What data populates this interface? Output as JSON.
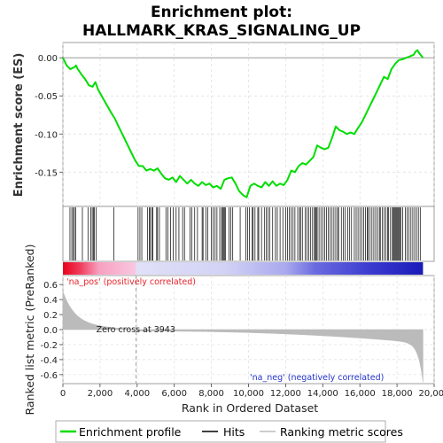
{
  "chart_data": {
    "type": "line",
    "title_line1": "Enrichment plot:",
    "title_line2": "HALLMARK_KRAS_SIGNALING_UP",
    "es_ylabel": "Enrichment score (ES)",
    "rank_ylabel": "Ranked list metric (PreRanked)",
    "xlabel": "Rank in Ordered Dataset",
    "x_ticks": [
      0,
      2000,
      4000,
      6000,
      8000,
      10000,
      12000,
      14000,
      16000,
      18000,
      20000
    ],
    "x_tick_labels": [
      "0",
      "2,000",
      "4,000",
      "6,000",
      "8,000",
      "10,000",
      "12,000",
      "14,000",
      "16,000",
      "18,000",
      "20,000"
    ],
    "xlim": [
      0,
      20000
    ],
    "es_yticks": [
      0.0,
      -0.05,
      -0.1,
      -0.15
    ],
    "es_ytick_labels": [
      "0.00",
      "-0.05",
      "-0.10",
      "-0.15"
    ],
    "es_ylim": [
      -0.195,
      0.02
    ],
    "rank_yticks": [
      0.6,
      0.4,
      0.2,
      0.0,
      -0.2,
      -0.4,
      -0.6
    ],
    "rank_ytick_labels": [
      "0.6",
      "0.4",
      "0.2",
      "0.0",
      "-0.2",
      "-0.4",
      "-0.6"
    ],
    "rank_ylim": [
      -0.72,
      0.72
    ],
    "n_genes": 19400,
    "zero_cross": 3943,
    "zero_cross_label": "Zero cross at 3943",
    "pos_label": "'na_pos' (positively correlated)",
    "neg_label": "'na_neg' (negatively correlated)",
    "colors": {
      "es_line": "#00dd00",
      "hits": "#000000",
      "metric_fill": "#bbbbbb",
      "pos_text": "#e8232a",
      "neg_text": "#2233cc",
      "grid": "#dddddd"
    },
    "series": [
      {
        "name": "Enrichment profile",
        "x": [
          0,
          200,
          400,
          550,
          650,
          700,
          800,
          1000,
          1200,
          1400,
          1600,
          1750,
          1900,
          2200,
          2600,
          2800,
          3000,
          3300,
          3600,
          3900,
          4100,
          4300,
          4500,
          4700,
          4900,
          5100,
          5300,
          5500,
          5700,
          5900,
          6100,
          6300,
          6500,
          6700,
          6900,
          7100,
          7300,
          7500,
          7700,
          7900,
          8100,
          8300,
          8500,
          8700,
          8900,
          9100,
          9300,
          9500,
          9700,
          9900,
          10100,
          10300,
          10500,
          10700,
          10900,
          11100,
          11300,
          11500,
          11700,
          11900,
          12100,
          12300,
          12500,
          12700,
          12900,
          13100,
          13300,
          13500,
          13700,
          13900,
          14100,
          14300,
          14500,
          14700,
          14900,
          15100,
          15300,
          15500,
          15700,
          15900,
          16100,
          16300,
          16500,
          16700,
          16900,
          17100,
          17300,
          17500,
          17700,
          17900,
          18100,
          18300,
          18500,
          18700,
          18900,
          19000,
          19100,
          19200,
          19300,
          19400
        ],
        "y": [
          0.0,
          -0.01,
          -0.015,
          -0.013,
          -0.012,
          -0.01,
          -0.015,
          -0.022,
          -0.028,
          -0.036,
          -0.038,
          -0.032,
          -0.042,
          -0.055,
          -0.072,
          -0.08,
          -0.09,
          -0.105,
          -0.12,
          -0.135,
          -0.142,
          -0.142,
          -0.148,
          -0.146,
          -0.148,
          -0.145,
          -0.152,
          -0.158,
          -0.16,
          -0.157,
          -0.163,
          -0.155,
          -0.16,
          -0.165,
          -0.16,
          -0.165,
          -0.168,
          -0.163,
          -0.167,
          -0.165,
          -0.17,
          -0.168,
          -0.172,
          -0.16,
          -0.158,
          -0.157,
          -0.165,
          -0.175,
          -0.18,
          -0.183,
          -0.168,
          -0.165,
          -0.168,
          -0.17,
          -0.163,
          -0.168,
          -0.162,
          -0.168,
          -0.165,
          -0.167,
          -0.16,
          -0.148,
          -0.15,
          -0.142,
          -0.138,
          -0.14,
          -0.135,
          -0.13,
          -0.115,
          -0.118,
          -0.12,
          -0.118,
          -0.105,
          -0.09,
          -0.095,
          -0.097,
          -0.1,
          -0.098,
          -0.1,
          -0.092,
          -0.085,
          -0.075,
          -0.065,
          -0.055,
          -0.045,
          -0.035,
          -0.025,
          -0.028,
          -0.015,
          -0.008,
          -0.003,
          -0.002,
          0.0,
          0.002,
          0.004,
          0.008,
          0.01,
          0.006,
          0.003,
          0.0
        ]
      }
    ],
    "hit_ranks": [
      380,
      480,
      560,
      620,
      700,
      1050,
      1350,
      1500,
      1580,
      1650,
      1700,
      1800,
      2750,
      4050,
      4150,
      4250,
      4550,
      4650,
      4700,
      4800,
      4850,
      5050,
      5100,
      5200,
      5550,
      5650,
      5800,
      5950,
      6100,
      6250,
      6450,
      6550,
      6850,
      6950,
      7100,
      7250,
      7500,
      7550,
      7700,
      7800,
      8000,
      8100,
      8200,
      8300,
      8450,
      8550,
      8600,
      8650,
      8700,
      8750,
      8950,
      9050,
      9150,
      9550,
      9850,
      9950,
      10050,
      10200,
      10250,
      10350,
      10500,
      10550,
      10700,
      10850,
      10950,
      11050,
      11150,
      11300,
      11450,
      11550,
      11700,
      11850,
      12000,
      12100,
      12200,
      12300,
      12400,
      12500,
      12650,
      12750,
      12800,
      12900,
      13050,
      13150,
      13250,
      13350,
      13450,
      13550,
      13600,
      13650,
      13700,
      13800,
      13900,
      14000,
      14100,
      14200,
      14300,
      14400,
      14500,
      14600,
      14700,
      14800,
      14850,
      15000,
      15100,
      15200,
      15350,
      15450,
      15550,
      15700,
      15800,
      15900,
      16000,
      16100,
      16200,
      16300,
      16400,
      16450,
      16550,
      16650,
      16750,
      16850,
      16950,
      17050,
      17100,
      17200,
      17300,
      17400,
      17500,
      17550,
      17650,
      17750,
      17800,
      17850,
      17900,
      17950,
      18000,
      18050,
      18100,
      18150,
      18200,
      18300,
      18450,
      18550,
      18650,
      18750,
      18850,
      18950,
      19050,
      19150,
      19250
    ]
  },
  "legend": {
    "items": [
      {
        "label": "Enrichment profile"
      },
      {
        "label": "Hits"
      },
      {
        "label": "Ranking metric scores"
      }
    ]
  }
}
